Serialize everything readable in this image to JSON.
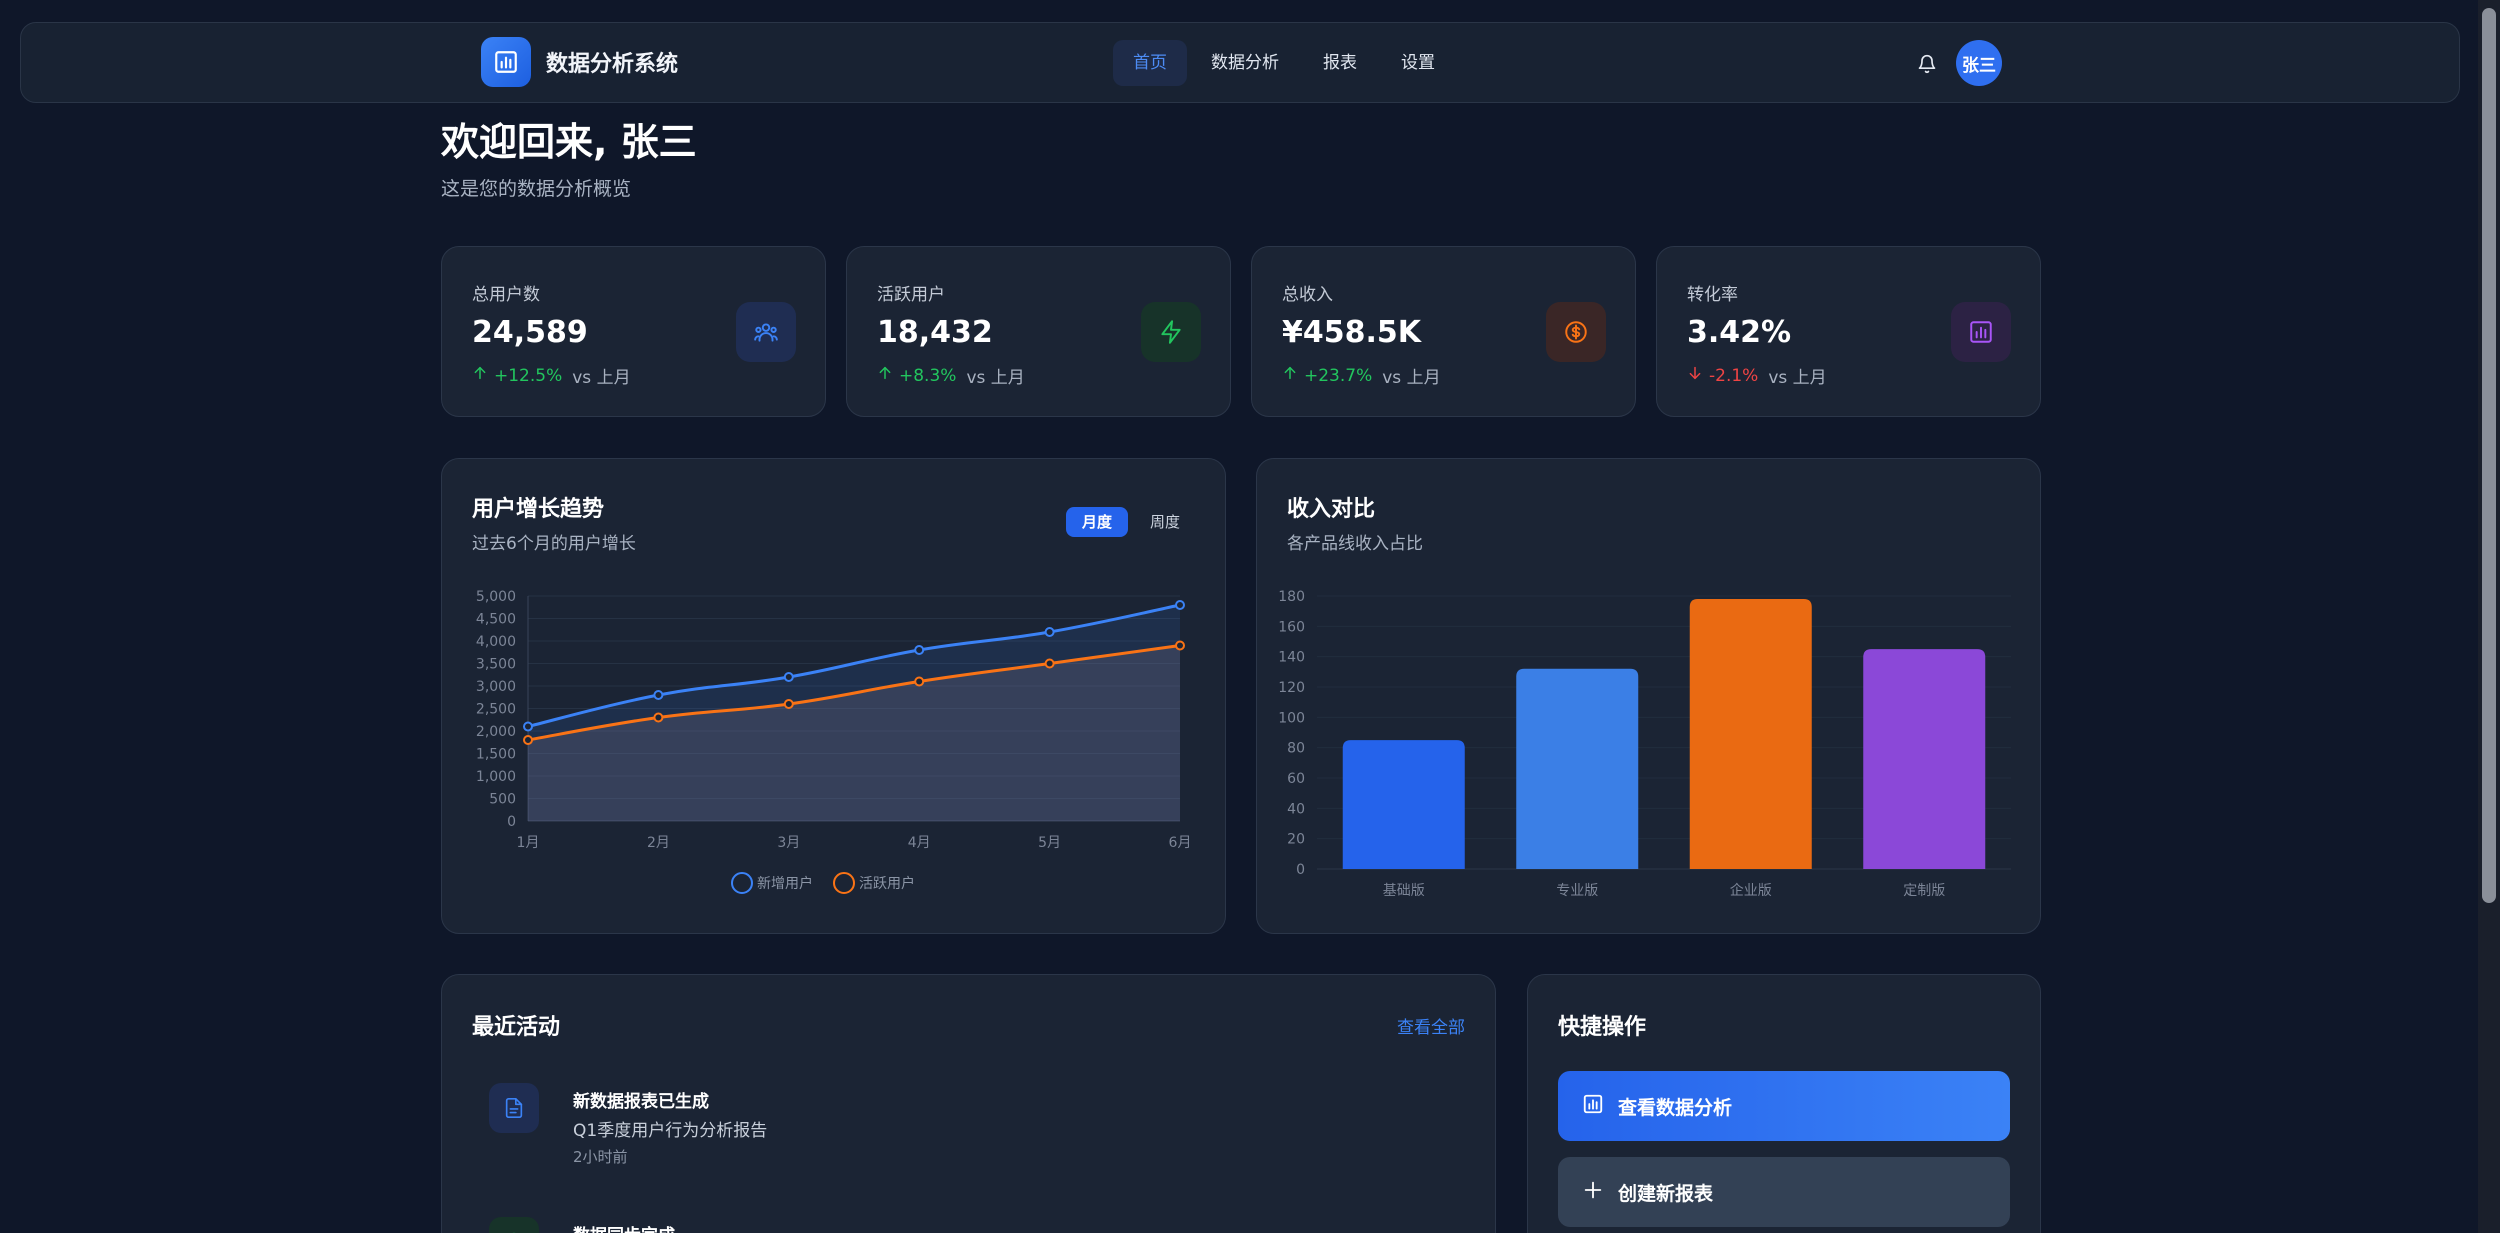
{
  "header": {
    "brand": "数据分析系统",
    "nav": [
      "首页",
      "数据分析",
      "报表",
      "设置"
    ],
    "active_nav": "首页",
    "avatar": "张三"
  },
  "welcome": {
    "title": "欢迎回来, 张三",
    "subtitle": "这是您的数据分析概览"
  },
  "stats": [
    {
      "label": "总用户数",
      "value": "24,589",
      "pct": "+12.5%",
      "vs": "vs 上月",
      "dir": "up",
      "icon": "users-icon",
      "color": "#3b82f6"
    },
    {
      "label": "活跃用户",
      "value": "18,432",
      "pct": "+8.3%",
      "vs": "vs 上月",
      "dir": "up",
      "icon": "lightning-icon",
      "color": "#22c55e"
    },
    {
      "label": "总收入",
      "value": "¥458.5K",
      "pct": "+23.7%",
      "vs": "vs 上月",
      "dir": "up",
      "icon": "dollar-coin-icon",
      "color": "#f97316"
    },
    {
      "label": "转化率",
      "value": "3.42%",
      "pct": "-2.1%",
      "vs": "vs 上月",
      "dir": "down",
      "icon": "bar-chart-icon",
      "color": "#a855f7"
    }
  ],
  "growth_card": {
    "title": "用户增长趋势",
    "subtitle": "过去6个月的用户增长",
    "toggle_on": "月度",
    "toggle_off": "周度"
  },
  "revenue_card": {
    "title": "收入对比",
    "subtitle": "各产品线收入占比"
  },
  "chart_data": [
    {
      "type": "line",
      "x": [
        "1月",
        "2月",
        "3月",
        "4月",
        "5月",
        "6月"
      ],
      "series": [
        {
          "name": "新增用户",
          "values": [
            2100,
            2800,
            3200,
            3800,
            4200,
            4800
          ],
          "color": "#3b82f6"
        },
        {
          "name": "活跃用户",
          "values": [
            1800,
            2300,
            2600,
            3100,
            3500,
            3900
          ],
          "color": "#f97316"
        }
      ],
      "ylim": [
        0,
        5000
      ],
      "yticks": [
        0,
        500,
        1000,
        1500,
        2000,
        2500,
        3000,
        3500,
        4000,
        4500,
        5000
      ],
      "yticks_labels": [
        "0",
        "500",
        "1,000",
        "1,500",
        "2,000",
        "2,500",
        "3,000",
        "3,500",
        "4,000",
        "4,500",
        "5,000"
      ],
      "legend": "bottom",
      "grid": true
    },
    {
      "type": "bar",
      "categories": [
        "基础版",
        "专业版",
        "企业版",
        "定制版"
      ],
      "values": [
        85,
        132,
        178,
        145
      ],
      "colors": [
        "#2563eb",
        "#3b7fe6",
        "#ea6a12",
        "#8b48d8"
      ],
      "ylim": [
        0,
        180
      ],
      "yticks": [
        0,
        20,
        40,
        60,
        80,
        100,
        120,
        140,
        160,
        180
      ],
      "grid": true
    }
  ],
  "activity": {
    "title": "最近活动",
    "view_all": "查看全部",
    "items": [
      {
        "title": "新数据报表已生成",
        "desc": "Q1季度用户行为分析报告",
        "time": "2小时前",
        "icon": "document-icon",
        "color": "#3b82f6"
      },
      {
        "title": "数据同步完成",
        "icon": "sync-icon",
        "color": "#22c55e"
      }
    ]
  },
  "quick": {
    "title": "快捷操作",
    "primary": "查看数据分析",
    "secondary": "创建新报表"
  }
}
